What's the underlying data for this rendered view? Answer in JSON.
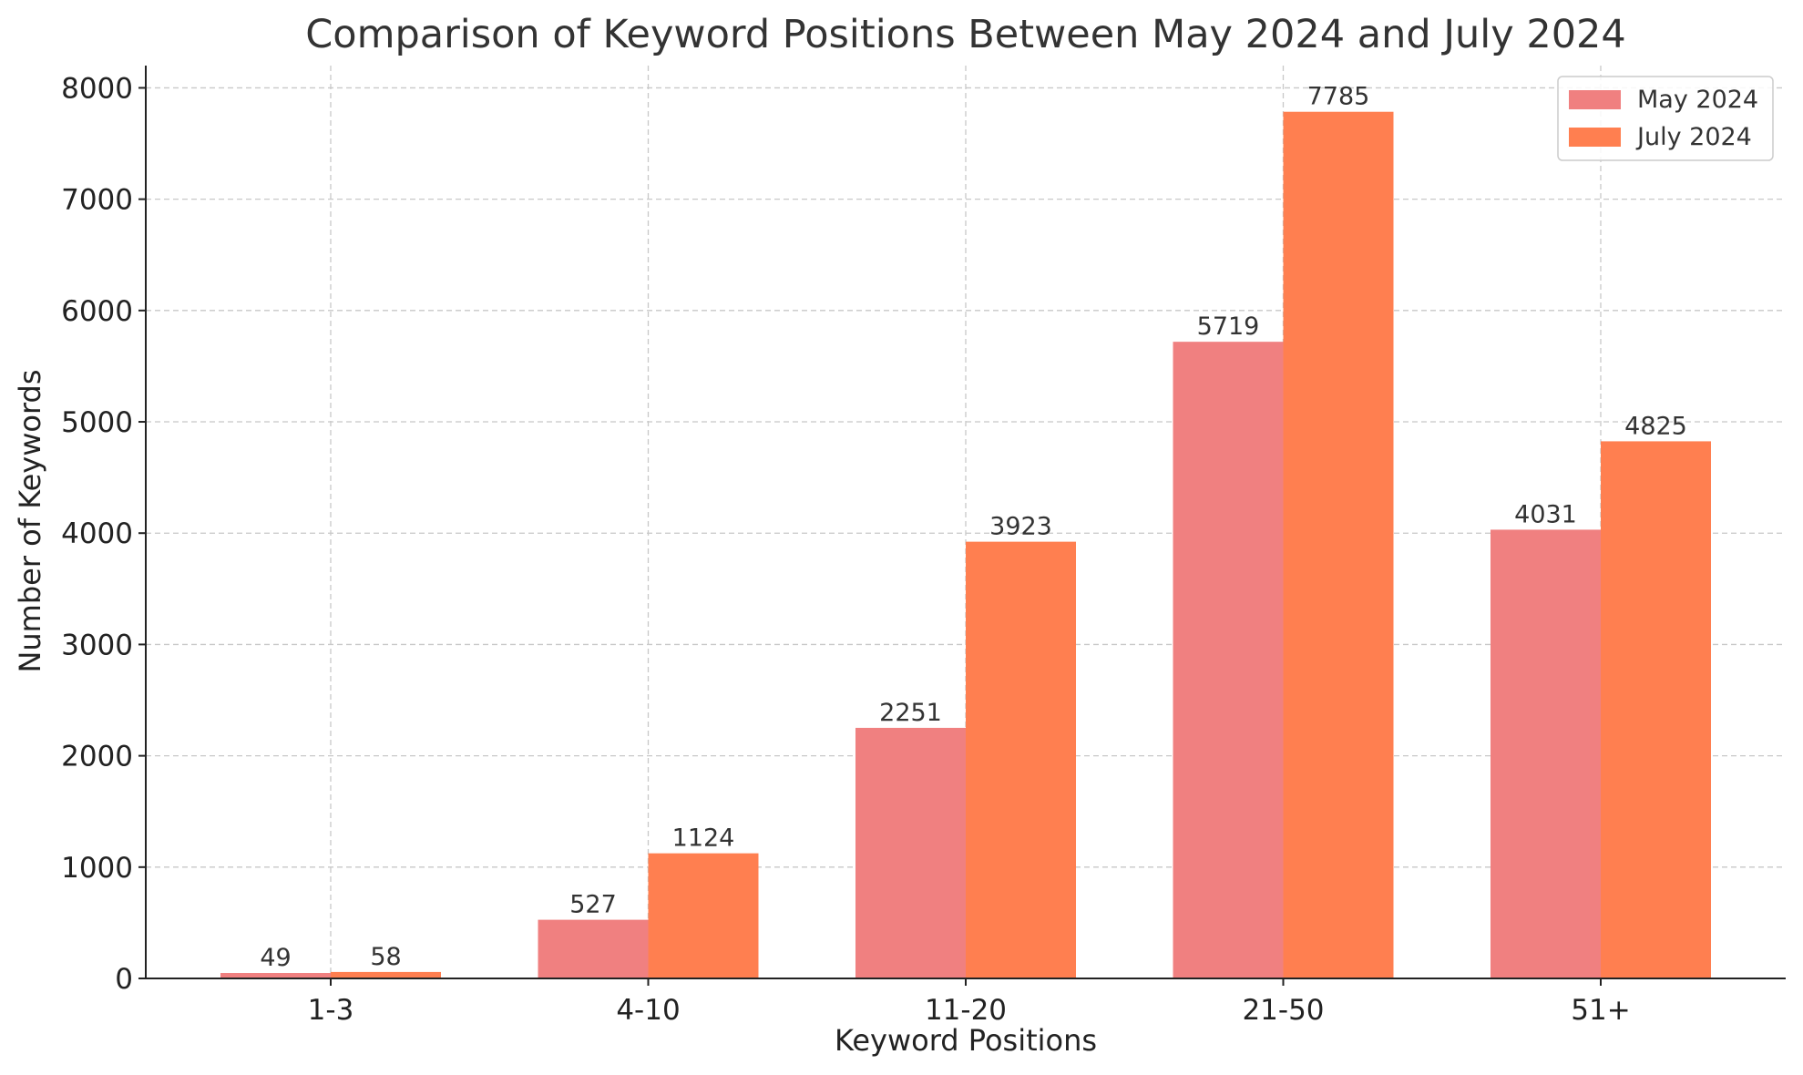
{
  "chart_data": {
    "type": "bar",
    "title": "Comparison of Keyword Positions Between May 2024 and July 2024",
    "xlabel": "Keyword Positions",
    "ylabel": "Number of Keywords",
    "categories": [
      "1-3",
      "4-10",
      "11-20",
      "21-50",
      "51+"
    ],
    "series": [
      {
        "name": "May 2024",
        "color": "#f08080",
        "values": [
          49,
          527,
          2251,
          5719,
          4031
        ]
      },
      {
        "name": "July 2024",
        "color": "#ff7f50",
        "values": [
          58,
          1124,
          3923,
          7785,
          4825
        ]
      }
    ],
    "ylim": [
      0,
      8200
    ],
    "yticks": [
      0,
      1000,
      2000,
      3000,
      4000,
      5000,
      6000,
      7000,
      8000
    ],
    "grid": true,
    "legend": "top-right"
  }
}
